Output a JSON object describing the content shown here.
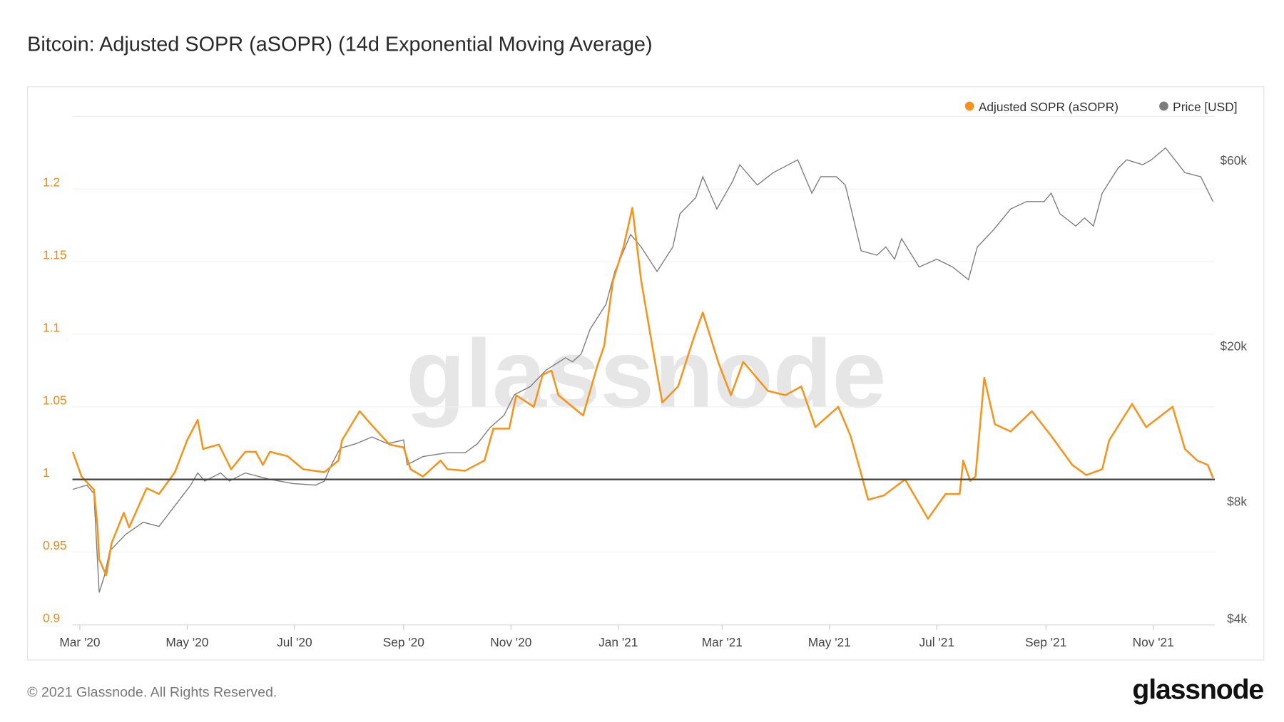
{
  "title": "Bitcoin: Adjusted SOPR (aSOPR) (14d Exponential Moving Average)",
  "footer": "© 2021 Glassnode. All Rights Reserved.",
  "logo_text": "glassnode",
  "watermark": "glassnode",
  "colors": {
    "asopr": "#f7931a",
    "price": "#7d7d7d",
    "baseline": "#444444",
    "left_axis": "#e8891c"
  },
  "chart_data": {
    "type": "line",
    "title": "Bitcoin: Adjusted SOPR (aSOPR) (14d Exponential Moving Average)",
    "legend_position": "top-right",
    "grid": true,
    "x_ticks": [
      "Mar '20",
      "May '20",
      "Jul '20",
      "Sep '20",
      "Nov '20",
      "Jan '21",
      "Mar '21",
      "May '21",
      "Jul '21",
      "Sep '21",
      "Nov '21"
    ],
    "y_left": {
      "ticks": [
        "0.9",
        "0.95",
        "1",
        "1.05",
        "1.1",
        "1.15",
        "1.2"
      ],
      "range": [
        0.9,
        1.25
      ]
    },
    "y_right": {
      "scale": "log",
      "ticks": [
        "$4k",
        "$8k",
        "$20k",
        "$60k"
      ],
      "tick_values": [
        4000,
        8000,
        20000,
        60000
      ]
    },
    "baseline": 1,
    "series": [
      {
        "name": "Adjusted SOPR (aSOPR)",
        "axis": "left",
        "points": [
          [
            "2020-02-26",
            1.019
          ],
          [
            "2020-03-02",
            1.002
          ],
          [
            "2020-03-09",
            0.993
          ],
          [
            "2020-03-11",
            0.968
          ],
          [
            "2020-03-12",
            0.945
          ],
          [
            "2020-03-16",
            0.934
          ],
          [
            "2020-03-19",
            0.956
          ],
          [
            "2020-03-26",
            0.977
          ],
          [
            "2020-03-29",
            0.967
          ],
          [
            "2020-04-08",
            0.994
          ],
          [
            "2020-04-15",
            0.99
          ],
          [
            "2020-04-24",
            1.005
          ],
          [
            "2020-05-01",
            1.027
          ],
          [
            "2020-05-07",
            1.041
          ],
          [
            "2020-05-10",
            1.021
          ],
          [
            "2020-05-19",
            1.024
          ],
          [
            "2020-05-26",
            1.007
          ],
          [
            "2020-06-03",
            1.019
          ],
          [
            "2020-06-09",
            1.019
          ],
          [
            "2020-06-13",
            1.01
          ],
          [
            "2020-06-17",
            1.019
          ],
          [
            "2020-06-27",
            1.016
          ],
          [
            "2020-07-06",
            1.007
          ],
          [
            "2020-07-18",
            1.005
          ],
          [
            "2020-07-26",
            1.013
          ],
          [
            "2020-07-28",
            1.027
          ],
          [
            "2020-08-07",
            1.047
          ],
          [
            "2020-08-15",
            1.036
          ],
          [
            "2020-08-24",
            1.024
          ],
          [
            "2020-09-01",
            1.022
          ],
          [
            "2020-09-05",
            1.007
          ],
          [
            "2020-09-12",
            1.002
          ],
          [
            "2020-09-22",
            1.013
          ],
          [
            "2020-09-26",
            1.007
          ],
          [
            "2020-10-06",
            1.006
          ],
          [
            "2020-10-17",
            1.013
          ],
          [
            "2020-10-22",
            1.035
          ],
          [
            "2020-10-31",
            1.035
          ],
          [
            "2020-11-04",
            1.058
          ],
          [
            "2020-11-14",
            1.05
          ],
          [
            "2020-11-19",
            1.072
          ],
          [
            "2020-11-24",
            1.075
          ],
          [
            "2020-11-28",
            1.058
          ],
          [
            "2020-12-12",
            1.044
          ],
          [
            "2020-12-20",
            1.078
          ],
          [
            "2020-12-24",
            1.092
          ],
          [
            "2020-12-29",
            1.137
          ],
          [
            "2021-01-04",
            1.16
          ],
          [
            "2021-01-09",
            1.187
          ],
          [
            "2021-01-14",
            1.137
          ],
          [
            "2021-01-21",
            1.087
          ],
          [
            "2021-01-26",
            1.053
          ],
          [
            "2021-02-04",
            1.064
          ],
          [
            "2021-02-13",
            1.098
          ],
          [
            "2021-02-18",
            1.115
          ],
          [
            "2021-02-27",
            1.08
          ],
          [
            "2021-03-06",
            1.058
          ],
          [
            "2021-03-13",
            1.081
          ],
          [
            "2021-03-27",
            1.061
          ],
          [
            "2021-04-06",
            1.058
          ],
          [
            "2021-04-15",
            1.064
          ],
          [
            "2021-04-23",
            1.036
          ],
          [
            "2021-05-06",
            1.05
          ],
          [
            "2021-05-13",
            1.03
          ],
          [
            "2021-05-19",
            1.004
          ],
          [
            "2021-05-23",
            0.986
          ],
          [
            "2021-06-01",
            0.989
          ],
          [
            "2021-06-13",
            1.0
          ],
          [
            "2021-06-26",
            0.973
          ],
          [
            "2021-07-06",
            0.99
          ],
          [
            "2021-07-14",
            0.99
          ],
          [
            "2021-07-16",
            1.013
          ],
          [
            "2021-07-20",
            0.999
          ],
          [
            "2021-07-23",
            1.002
          ],
          [
            "2021-07-28",
            1.07
          ],
          [
            "2021-08-03",
            1.038
          ],
          [
            "2021-08-12",
            1.033
          ],
          [
            "2021-08-24",
            1.047
          ],
          [
            "2021-09-04",
            1.03
          ],
          [
            "2021-09-16",
            1.01
          ],
          [
            "2021-09-24",
            1.003
          ],
          [
            "2021-10-03",
            1.007
          ],
          [
            "2021-10-07",
            1.027
          ],
          [
            "2021-10-20",
            1.052
          ],
          [
            "2021-10-28",
            1.036
          ],
          [
            "2021-11-12",
            1.05
          ],
          [
            "2021-11-19",
            1.021
          ],
          [
            "2021-11-26",
            1.013
          ],
          [
            "2021-12-02",
            1.01
          ],
          [
            "2021-12-05",
            1.001
          ]
        ]
      },
      {
        "name": "Price [USD]",
        "axis": "right",
        "points": [
          [
            "2020-02-26",
            8550
          ],
          [
            "2020-03-05",
            8770
          ],
          [
            "2020-03-09",
            8340
          ],
          [
            "2020-03-12",
            4650
          ],
          [
            "2020-03-15",
            5130
          ],
          [
            "2020-03-18",
            5940
          ],
          [
            "2020-03-27",
            6550
          ],
          [
            "2020-04-06",
            7040
          ],
          [
            "2020-04-15",
            6870
          ],
          [
            "2020-04-24",
            7760
          ],
          [
            "2020-05-03",
            8770
          ],
          [
            "2020-05-07",
            9420
          ],
          [
            "2020-05-11",
            8980
          ],
          [
            "2020-05-20",
            9420
          ],
          [
            "2020-05-25",
            8980
          ],
          [
            "2020-06-03",
            9420
          ],
          [
            "2020-06-17",
            9070
          ],
          [
            "2020-06-30",
            8850
          ],
          [
            "2020-07-13",
            8770
          ],
          [
            "2020-07-18",
            8980
          ],
          [
            "2020-07-22",
            9890
          ],
          [
            "2020-07-27",
            10900
          ],
          [
            "2020-08-05",
            11200
          ],
          [
            "2020-08-14",
            11650
          ],
          [
            "2020-08-23",
            11200
          ],
          [
            "2020-09-01",
            11450
          ],
          [
            "2020-09-03",
            9890
          ],
          [
            "2020-09-12",
            10380
          ],
          [
            "2020-09-26",
            10620
          ],
          [
            "2020-10-06",
            10620
          ],
          [
            "2020-10-13",
            11200
          ],
          [
            "2020-10-20",
            12300
          ],
          [
            "2020-10-28",
            13240
          ],
          [
            "2020-11-03",
            14960
          ],
          [
            "2020-11-12",
            15700
          ],
          [
            "2020-11-21",
            17300
          ],
          [
            "2020-12-02",
            18600
          ],
          [
            "2020-12-06",
            18160
          ],
          [
            "2020-12-11",
            19050
          ],
          [
            "2020-12-16",
            22030
          ],
          [
            "2020-12-25",
            25520
          ],
          [
            "2020-12-30",
            30970
          ],
          [
            "2021-01-08",
            38550
          ],
          [
            "2021-01-14",
            35800
          ],
          [
            "2021-01-23",
            30970
          ],
          [
            "2021-02-01",
            35800
          ],
          [
            "2021-02-05",
            43550
          ],
          [
            "2021-02-14",
            47900
          ],
          [
            "2021-02-18",
            54200
          ],
          [
            "2021-02-26",
            44800
          ],
          [
            "2021-03-07",
            52800
          ],
          [
            "2021-03-11",
            58200
          ],
          [
            "2021-03-21",
            51600
          ],
          [
            "2021-03-30",
            55500
          ],
          [
            "2021-04-13",
            59900
          ],
          [
            "2021-04-21",
            49200
          ],
          [
            "2021-04-26",
            54200
          ],
          [
            "2021-05-05",
            54200
          ],
          [
            "2021-05-10",
            51600
          ],
          [
            "2021-05-14",
            43550
          ],
          [
            "2021-05-19",
            35000
          ],
          [
            "2021-05-28",
            34100
          ],
          [
            "2021-06-02",
            35800
          ],
          [
            "2021-06-07",
            33300
          ],
          [
            "2021-06-11",
            37600
          ],
          [
            "2021-06-21",
            31800
          ],
          [
            "2021-07-01",
            33300
          ],
          [
            "2021-07-10",
            31800
          ],
          [
            "2021-07-19",
            29500
          ],
          [
            "2021-07-24",
            35800
          ],
          [
            "2021-08-02",
            39500
          ],
          [
            "2021-08-12",
            44800
          ],
          [
            "2021-08-21",
            46800
          ],
          [
            "2021-08-31",
            46800
          ],
          [
            "2021-09-04",
            49200
          ],
          [
            "2021-09-09",
            43550
          ],
          [
            "2021-09-18",
            40500
          ],
          [
            "2021-09-23",
            42500
          ],
          [
            "2021-09-28",
            40500
          ],
          [
            "2021-10-03",
            49200
          ],
          [
            "2021-10-12",
            57000
          ],
          [
            "2021-10-17",
            59900
          ],
          [
            "2021-10-26",
            58200
          ],
          [
            "2021-10-31",
            59900
          ],
          [
            "2021-11-08",
            64300
          ],
          [
            "2021-11-19",
            55500
          ],
          [
            "2021-11-28",
            54200
          ],
          [
            "2021-12-05",
            46800
          ]
        ]
      }
    ]
  }
}
